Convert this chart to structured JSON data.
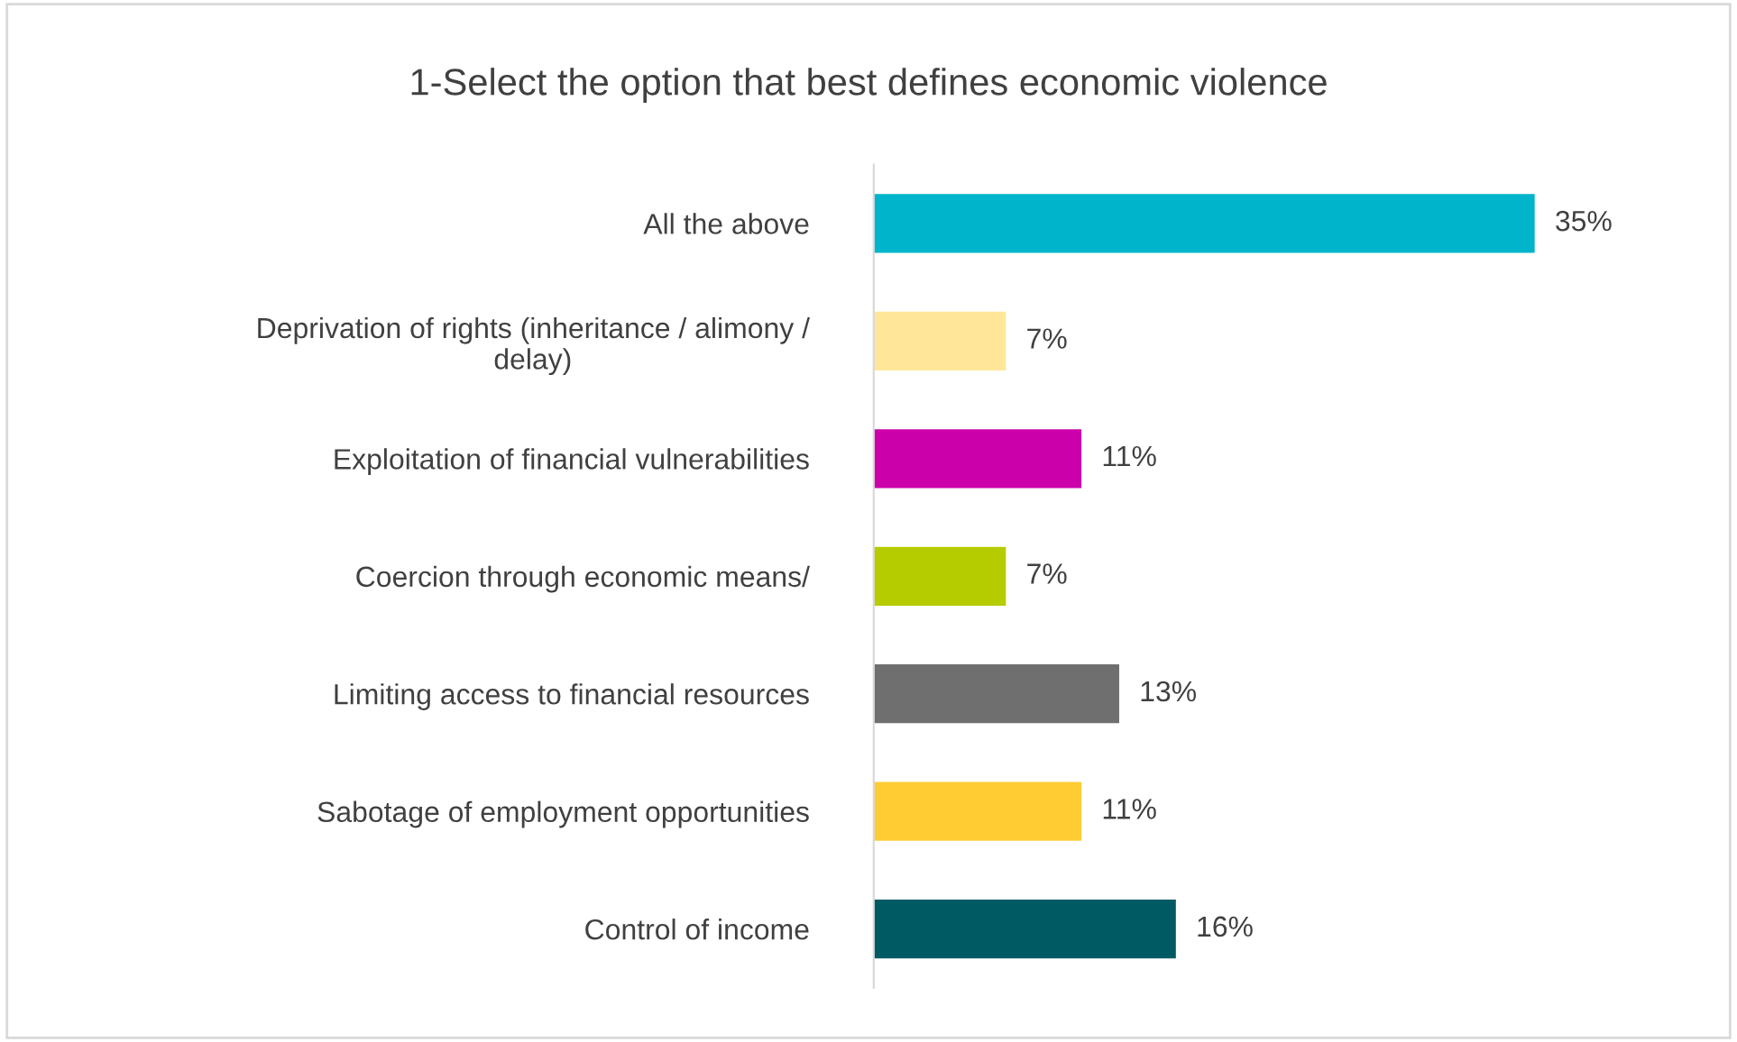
{
  "chart_data": {
    "type": "bar",
    "orientation": "horizontal",
    "title": "1-Select the option that best defines economic violence",
    "categories": [
      "All the above",
      "Deprivation of rights (inheritance / alimony /\ndelay)",
      "Exploitation of financial vulnerabilities",
      "Coercion through economic means/",
      "Limiting access to financial resources",
      "Sabotage of employment opportunities",
      "Control of income"
    ],
    "values": [
      35,
      7,
      11,
      7,
      13,
      11,
      16
    ],
    "value_labels": [
      "35%",
      "7%",
      "11%",
      "7%",
      "13%",
      "11%",
      "16%"
    ],
    "colors": [
      "#00b4cc",
      "#ffe699",
      "#cc00aa",
      "#b5cc00",
      "#6f6f6f",
      "#ffcc33",
      "#005a64"
    ],
    "tick_labels": "y",
    "grid": false,
    "legend": false
  }
}
